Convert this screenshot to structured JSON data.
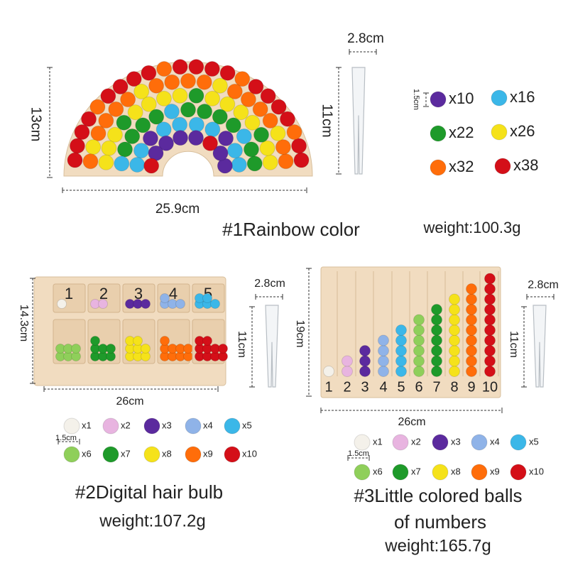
{
  "rainbow": {
    "height": "13cm",
    "width": "25.9cm",
    "tweezers": {
      "width": "2.8cm",
      "length": "11cm"
    },
    "ball_size": "1.5cm",
    "counts": [
      "x10",
      "x16",
      "x22",
      "x26",
      "x32",
      "x38"
    ],
    "title": "#1Rainbow color",
    "weight": "weight:100.3g"
  },
  "digital": {
    "height": "14.3cm",
    "width": "26cm",
    "tweezers": {
      "width": "2.8cm",
      "length": "11cm"
    },
    "ball_size": "1.5cm",
    "cell_numbers": [
      "1",
      "2",
      "3",
      "4",
      "5"
    ],
    "counts": [
      "x1",
      "x2",
      "x3",
      "x4",
      "x5",
      "x6",
      "x7",
      "x8",
      "x9",
      "x10"
    ],
    "title": "#2Digital hair bulb",
    "weight": "weight:107.2g"
  },
  "numbers": {
    "height": "19cm",
    "width": "26cm",
    "tweezers": {
      "width": "2.8cm",
      "length": "11cm"
    },
    "ball_size": "1.5cm",
    "board_numbers": [
      "1",
      "2",
      "3",
      "4",
      "5",
      "6",
      "7",
      "8",
      "9",
      "10"
    ],
    "counts": [
      "x1",
      "x2",
      "x3",
      "x4",
      "x5",
      "x6",
      "x7",
      "x8",
      "x9",
      "x10"
    ],
    "title_lines": [
      "#3Little colored balls",
      "of numbers"
    ],
    "weight": "weight:165.7g"
  }
}
